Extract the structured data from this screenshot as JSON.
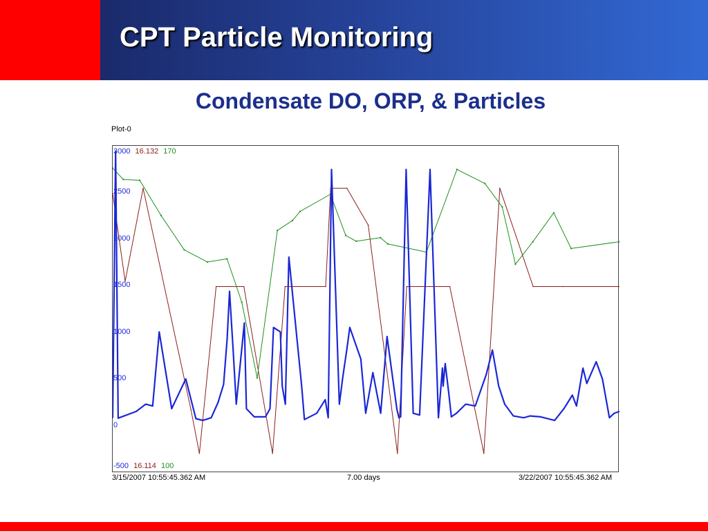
{
  "slide": {
    "title": "CPT Particle Monitoring",
    "subtitle": "Condensate DO, ORP, & Particles"
  },
  "colors": {
    "accent_red": "#ff0000",
    "title_blue": "#26439a",
    "subtitle_blue": "#1b2f8c"
  },
  "chart_data": {
    "type": "line",
    "plot_name": "Plot-0",
    "x_start_label": "3/15/2007 10:55:45.362 AM",
    "x_end_label": "3/22/2007 10:55:45.362 AM",
    "x_span_label": "7.00 days",
    "xlim": [
      "3/15/2007 10:55",
      "3/22/2007 10:55"
    ],
    "grid": false,
    "y_ticks": [
      "3000",
      "2500",
      "2000",
      "1500",
      "1000",
      "500",
      "0",
      "-500"
    ],
    "scales": {
      "particles": {
        "max": "3000",
        "min": "-500",
        "color": "#1a27d6"
      },
      "red": {
        "max": "16.132",
        "min": "16.114",
        "color": "#8b1c1c"
      },
      "green": {
        "max": "170",
        "min": "100",
        "color": "#1e8f1e"
      }
    },
    "series": [
      {
        "color": "#8b1c1c",
        "ylim": [
          16.114,
          16.132
        ],
        "x": [
          "3/15 10:55",
          "3/15 15:02",
          "3/15 21:00",
          "3/16 12:50",
          "3/16 15:39",
          "3/16 21:12",
          "3/17 06:24",
          "3/17 15:55",
          "3/17 20:03",
          "3/18 09:30",
          "3/18 11:09",
          "3/18 16:33",
          "3/18 23:37",
          "3/19 09:18",
          "3/19 12:22",
          "3/20 02:40",
          "3/20 13:57",
          "3/20 19:14",
          "3/21 06:18",
          "3/21 16:10",
          "3/22 10:55"
        ],
        "values": [
          16.1296,
          16.1246,
          16.1299,
          16.1173,
          16.1148,
          16.1243,
          16.1243,
          16.1148,
          16.1243,
          16.1243,
          16.1299,
          16.1299,
          16.1278,
          16.1148,
          16.1243,
          16.1243,
          16.1148,
          16.1299,
          16.1243,
          16.1243,
          16.1243
        ]
      },
      {
        "color": "#1e8f1e",
        "ylim": [
          100,
          170
        ],
        "x": [
          "3/15 10:55",
          "3/15 14:26",
          "3/15 19:53",
          "3/16 02:57",
          "3/16 10:37",
          "3/16 18:19",
          "3/17 00:49",
          "3/17 05:42",
          "3/17 10:49",
          "3/17 17:30",
          "3/17 22:31",
          "3/18 01:02",
          "3/18 11:04",
          "3/18 16:10",
          "3/18 19:38",
          "3/19 03:40",
          "3/19 06:06",
          "3/19 18:56",
          "3/20 05:02",
          "3/20 14:19",
          "3/20 20:03",
          "3/21 00:25",
          "3/21 06:12",
          "3/21 13:07",
          "3/21 18:54",
          "3/22 10:55"
        ],
        "values": [
          166.3,
          163.8,
          163.6,
          155.8,
          148.2,
          145.5,
          146.2,
          136.6,
          119.8,
          152.5,
          154.7,
          156.7,
          160.5,
          151.4,
          150.1,
          150.9,
          149.5,
          147.7,
          166.0,
          162.9,
          157.7,
          145.0,
          150.0,
          156.4,
          148.5,
          150.0
        ]
      },
      {
        "color": "#1a27d6",
        "ylim": [
          -500,
          3000
        ],
        "x": [
          "3/15 10:55",
          "3/15 11:53",
          "3/15 12:44",
          "3/15 18:44",
          "3/15 21:51",
          "3/16 00:10",
          "3/16 02:20",
          "3/16 06:28",
          "3/16 11:08",
          "3/16 14:29",
          "3/16 16:45",
          "3/16 19:35",
          "3/16 21:51",
          "3/16 23:41",
          "3/17 00:51",
          "3/17 01:39",
          "3/17 02:51",
          "3/17 03:53",
          "3/17 06:33",
          "3/17 07:14",
          "3/17 09:50",
          "3/17 13:34",
          "3/17 15:04",
          "3/17 16:14",
          "3/17 18:30",
          "3/17 19:07",
          "3/17 20:09",
          "3/17 21:19",
          "3/18 01:33",
          "3/18 02:29",
          "3/18 06:33",
          "3/18 09:22",
          "3/18 10:21",
          "3/18 11:28",
          "3/18 14:03",
          "3/18 15:12",
          "3/18 16:30",
          "3/18 17:30",
          "3/18 21:10",
          "3/18 22:47",
          "3/19 01:10",
          "3/19 03:45",
          "3/19 05:51",
          "3/19 09:09",
          "3/19 09:48",
          "3/19 10:22",
          "3/19 12:11",
          "3/19 14:32",
          "3/19 16:40",
          "3/19 20:07",
          "3/19 22:54",
          "3/20 00:13",
          "3/20 00:27",
          "3/20 01:08",
          "3/20 02:24",
          "3/20 03:11",
          "3/20 04:53",
          "3/20 07:55",
          "3/20 11:07",
          "3/20 14:45",
          "3/20 16:48",
          "3/20 18:53",
          "3/20 20:52",
          "3/20 23:44",
          "3/21 03:08",
          "3/21 05:18",
          "3/21 08:47",
          "3/21 13:25",
          "3/21 16:29",
          "3/21 17:48",
          "3/21 19:17",
          "3/21 20:39",
          "3/21 22:48",
          "3/22 00:05",
          "3/22 03:12",
          "3/22 05:16",
          "3/22 07:34",
          "3/22 09:11",
          "3/22 10:55"
        ],
        "values": [
          50,
          3000,
          45,
          120,
          200,
          180,
          1000,
          150,
          480,
          40,
          20,
          50,
          220,
          420,
          920,
          1450,
          800,
          200,
          1100,
          150,
          60,
          60,
          150,
          1050,
          1000,
          400,
          200,
          1830,
          400,
          30,
          100,
          250,
          50,
          2800,
          200,
          500,
          800,
          1050,
          700,
          100,
          550,
          100,
          950,
          140,
          50,
          60,
          2800,
          100,
          80,
          2800,
          50,
          600,
          400,
          650,
          300,
          60,
          100,
          200,
          180,
          530,
          800,
          400,
          200,
          70,
          50,
          70,
          60,
          20,
          150,
          220,
          300,
          180,
          600,
          430,
          670,
          480,
          50,
          100,
          120
        ]
      }
    ]
  }
}
